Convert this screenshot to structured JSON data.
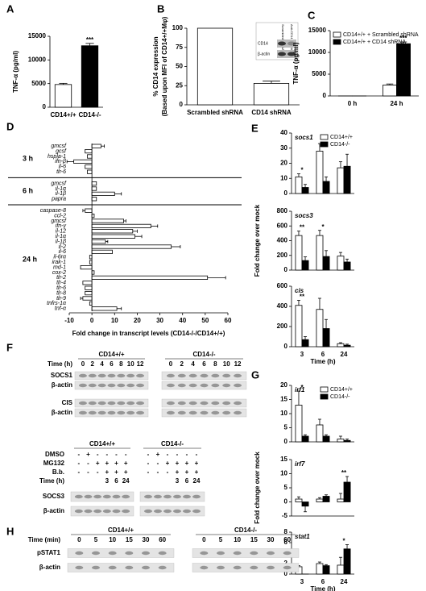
{
  "panel_labels": [
    "A",
    "B",
    "C",
    "D",
    "E",
    "F",
    "G",
    "H"
  ],
  "chart_data": [
    {
      "type": "bar",
      "ylabel": [
        "TNF-α (pg/ml)"
      ],
      "categories": [
        "CD14+/+",
        "CD14-/-"
      ],
      "series": [
        {
          "values": [
            4800,
            13000
          ],
          "errors": [
            250,
            500
          ],
          "colors": [
            "#ffffff",
            "#000000"
          ]
        }
      ],
      "annotations": [
        null,
        "***"
      ],
      "ylim": [
        0,
        15000
      ],
      "yticks": [
        0,
        5000,
        10000,
        15000
      ]
    },
    {
      "type": "bar",
      "ylabel": [
        "% CD14 expression",
        "(Based upon MFI of CD14+/+Mφ)"
      ],
      "categories": [
        "Scrambled shRNA",
        "CD14 shRNA"
      ],
      "series": [
        {
          "values": [
            100,
            28
          ],
          "errors": [
            null,
            3
          ],
          "color": "#ffffff"
        }
      ],
      "ylim": [
        0,
        100
      ],
      "yticks": [
        0,
        25,
        50,
        75,
        100
      ],
      "inset": {
        "rows": [
          "CD14",
          "β-actin"
        ],
        "lanes": [
          "Scrambled shRNA",
          "Anti-CD14 shRNA"
        ]
      }
    },
    {
      "type": "bar",
      "ylabel": [
        "TNF-α (pg/ml)"
      ],
      "categories": [
        "0 h",
        "24 h"
      ],
      "series": [
        {
          "name": "CD14+/+ + Scrambled shRNA",
          "color": "#ffffff",
          "values": [
            0,
            2500
          ],
          "errors": [
            null,
            250
          ]
        },
        {
          "name": "CD14+/+ + CD14 shRNA",
          "color": "#000000",
          "values": [
            0,
            12000
          ],
          "errors": [
            null,
            400
          ]
        }
      ],
      "annotations": [
        null,
        "***"
      ],
      "ylim": [
        0,
        15000
      ],
      "yticks": [
        0,
        5000,
        10000,
        15000
      ],
      "legend": "upper left"
    },
    {
      "type": "hbar",
      "xlabel": "Fold change in transcript levels (CD14-/-/CD14+/+)",
      "xlim": [
        -10,
        60
      ],
      "xticks": [
        -10,
        0,
        10,
        20,
        30,
        40,
        50,
        60
      ],
      "groups": [
        {
          "label": "3 h",
          "categories": [
            "gmcsf",
            "gcsf",
            "hspla-1",
            "ifn-β",
            "il-6",
            "tlr-6"
          ],
          "values": [
            4,
            -3,
            -2,
            -8,
            -3,
            -2
          ],
          "errors": [
            1.5,
            null,
            null,
            3,
            null,
            null
          ]
        },
        {
          "label": "6 h",
          "categories": [
            "gmcsf",
            "il-1α",
            "il-1β",
            "papra"
          ],
          "values": [
            2,
            2,
            10,
            2
          ],
          "errors": [
            null,
            null,
            3,
            null
          ]
        },
        {
          "label": "24 h",
          "categories": [
            "caspase-8",
            "ccl-2",
            "gmcsf",
            "ifn-γ",
            "il-12",
            "il-1α",
            "il-1β",
            "il-2",
            "il-6",
            "il-6rα",
            "irak-1",
            "md-1",
            "cox-2",
            "tlr-2",
            "tlr-4",
            "tlr-6",
            "tlr-8",
            "tlr-9",
            "tnfrs-1α",
            "tnf-α"
          ],
          "values": [
            -3,
            1,
            14,
            26,
            18,
            19,
            6,
            35,
            9,
            -1,
            -1,
            -5,
            1,
            51,
            -4,
            -3,
            -3,
            -4,
            -1,
            11
          ],
          "errors": [
            1,
            null,
            1,
            3,
            2,
            3,
            1,
            4,
            null,
            null,
            null,
            null,
            null,
            8,
            null,
            null,
            null,
            1,
            null,
            2
          ]
        }
      ]
    },
    {
      "type": "bar",
      "title": "socs1",
      "categories": [
        null,
        null,
        null
      ],
      "series": [
        {
          "name": "CD14+/+",
          "color": "#ffffff",
          "values": [
            11,
            28,
            17
          ],
          "errors": [
            2,
            5,
            4
          ]
        },
        {
          "name": "CD14-/-",
          "color": "#000000",
          "values": [
            4,
            8,
            18
          ],
          "errors": [
            2,
            3,
            8
          ]
        }
      ],
      "annotations": [
        "*",
        "*",
        null
      ],
      "ylim": [
        0,
        40
      ],
      "yticks": [
        0,
        10,
        20,
        30,
        40
      ],
      "legend": "upper right"
    },
    {
      "type": "bar",
      "title": "socs3",
      "ylabel": [
        "Fold change over mock"
      ],
      "categories": [
        null,
        null,
        null
      ],
      "series": [
        {
          "name": "CD14+/+",
          "color": "#ffffff",
          "values": [
            470,
            470,
            190
          ],
          "errors": [
            60,
            70,
            50
          ]
        },
        {
          "name": "CD14-/-",
          "color": "#000000",
          "values": [
            130,
            185,
            110
          ],
          "errors": [
            50,
            80,
            40
          ]
        }
      ],
      "annotations": [
        "**",
        "*",
        null
      ],
      "ylim": [
        0,
        800
      ],
      "yticks": [
        0,
        200,
        400,
        600,
        800
      ]
    },
    {
      "type": "bar",
      "title": "cis",
      "xlabel": "Time (h)",
      "categories": [
        "3",
        "6",
        "24"
      ],
      "series": [
        {
          "name": "CD14+/+",
          "color": "#ffffff",
          "values": [
            410,
            370,
            30
          ],
          "errors": [
            50,
            110,
            10
          ]
        },
        {
          "name": "CD14-/-",
          "color": "#000000",
          "values": [
            70,
            180,
            15
          ],
          "errors": [
            30,
            90,
            10
          ]
        }
      ],
      "annotations": [
        "**",
        null,
        null
      ],
      "ylim": [
        0,
        600
      ],
      "yticks": [
        0,
        200,
        400,
        600
      ]
    },
    {
      "type": "bar",
      "title": "irf1",
      "categories": [
        null,
        null,
        null
      ],
      "series": [
        {
          "name": "CD14+/+",
          "color": "#ffffff",
          "values": [
            13,
            6,
            1
          ],
          "errors": [
            5,
            2,
            1
          ]
        },
        {
          "name": "CD14-/-",
          "color": "#000000",
          "values": [
            2,
            2,
            0.5
          ],
          "errors": [
            0.5,
            0.5,
            0.5
          ]
        }
      ],
      "annotations": [
        "*",
        null,
        null
      ],
      "ylim": [
        0,
        20
      ],
      "yticks": [
        0,
        5,
        10,
        15,
        20
      ],
      "legend": "upper right"
    },
    {
      "type": "bar",
      "title": "irf7",
      "ylabel": [
        "Fold change over mock"
      ],
      "categories": [
        null,
        null,
        null
      ],
      "series": [
        {
          "name": "CD14+/+",
          "color": "#ffffff",
          "values": [
            1,
            1,
            1
          ],
          "errors": [
            0.8,
            0.5,
            2
          ]
        },
        {
          "name": "CD14-/-",
          "color": "#000000",
          "values": [
            -1.5,
            2,
            7
          ],
          "errors": [
            2,
            0.5,
            2
          ]
        }
      ],
      "annotations": [
        null,
        null,
        "**"
      ],
      "ylim": [
        -5,
        15
      ],
      "yticks": [
        -5,
        0,
        5,
        10,
        15
      ]
    },
    {
      "type": "bar",
      "title": "stat1",
      "xlabel": "Time (h)",
      "categories": [
        "3",
        "6",
        "24"
      ],
      "series": [
        {
          "name": "CD14+/+",
          "color": "#ffffff",
          "values": [
            1.4,
            2,
            1.7
          ],
          "errors": [
            0.2,
            0.3,
            1.5
          ]
        },
        {
          "name": "CD14-/-",
          "color": "#000000",
          "values": [
            0,
            1.6,
            4.8
          ],
          "errors": [
            null,
            0.2,
            0.8
          ]
        }
      ],
      "annotations": [
        null,
        null,
        "*"
      ],
      "ylim": [
        0,
        8
      ],
      "yticks": [
        0,
        2,
        4,
        6,
        8
      ]
    }
  ],
  "blots": [
    {
      "groups": [
        "CD14+/+",
        "CD14-/-"
      ],
      "header_rows": [
        {
          "label": "Time (h)",
          "cells": [
            0,
            2,
            4,
            6,
            8,
            10,
            12,
            0,
            2,
            4,
            6,
            8,
            10,
            12
          ]
        }
      ],
      "rows": [
        "SOCS1",
        "β-actin",
        "CIS",
        "β-actin"
      ]
    },
    {
      "groups": [
        "CD14+/+",
        "CD14-/-"
      ],
      "header_rows": [
        {
          "label": "DMSO",
          "cells": [
            "-",
            "+",
            "-",
            "-",
            "-",
            "-",
            "-",
            "+",
            "-",
            "-",
            "-",
            "-"
          ]
        },
        {
          "label": "MG132",
          "cells": [
            "-",
            "-",
            "+",
            "+",
            "+",
            "+",
            "-",
            "-",
            "+",
            "+",
            "+",
            "+"
          ]
        },
        {
          "label": "B.b.",
          "cells": [
            "-",
            "-",
            "-",
            "+",
            "+",
            "+",
            "-",
            "-",
            "-",
            "+",
            "+",
            "+"
          ]
        },
        {
          "label": "Time (h)",
          "cells": [
            null,
            null,
            null,
            3,
            6,
            24,
            null,
            null,
            null,
            3,
            6,
            24
          ]
        }
      ],
      "rows": [
        "SOCS3",
        "β-actin"
      ]
    },
    {
      "groups": [
        "CD14+/+",
        "CD14-/-"
      ],
      "header_rows": [
        {
          "label": "Time (min)",
          "cells": [
            0,
            5,
            10,
            15,
            30,
            60,
            0,
            5,
            10,
            15,
            30,
            60
          ]
        }
      ],
      "rows": [
        "pSTAT1",
        "β-actin"
      ]
    }
  ]
}
